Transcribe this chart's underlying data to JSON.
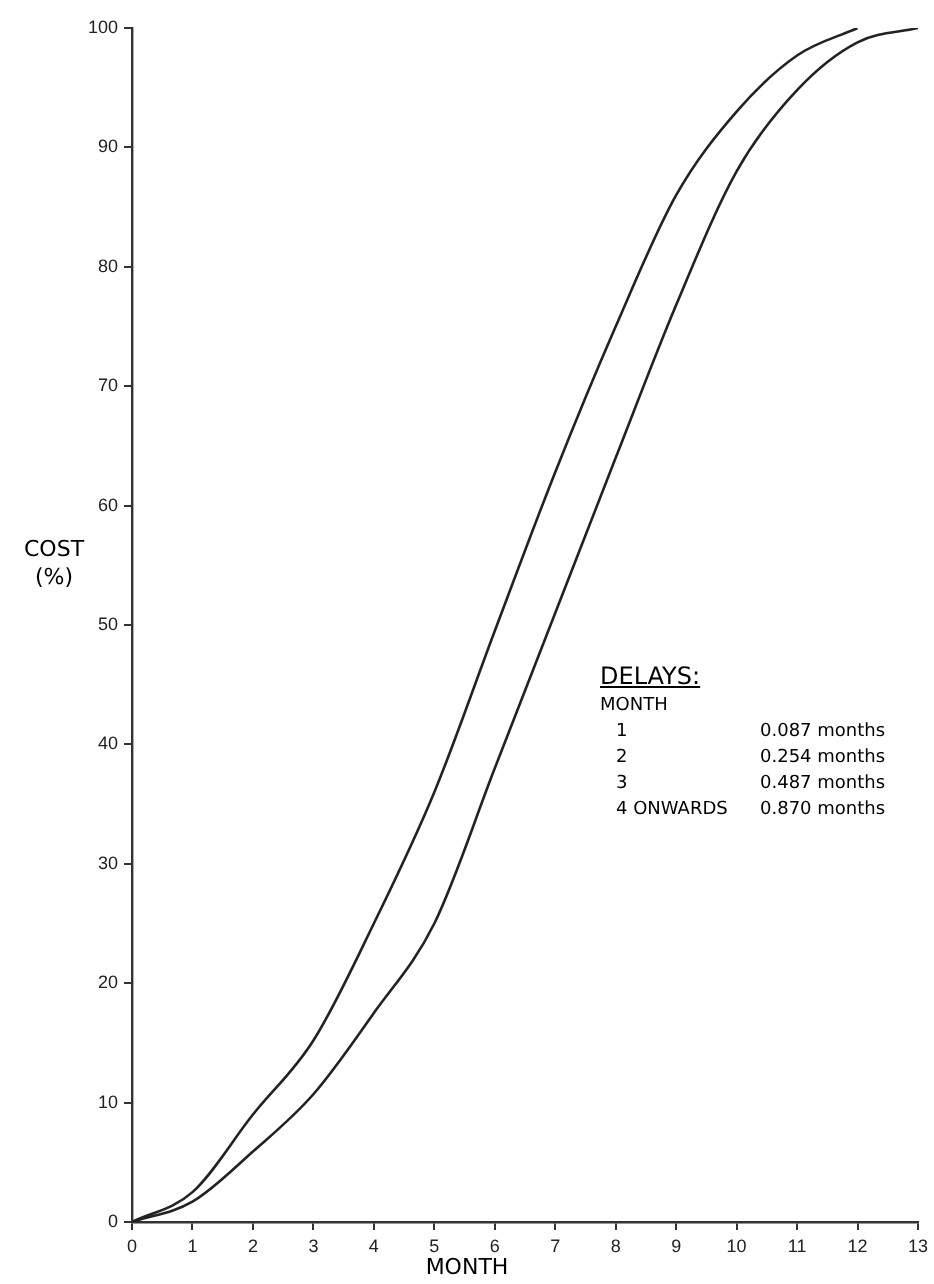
{
  "chart_data": {
    "type": "line",
    "xlabel": "MONTH",
    "ylabel": "COST (%)",
    "xlim": [
      0,
      13
    ],
    "xticks": [
      0,
      1,
      2,
      3,
      4,
      5,
      6,
      7,
      8,
      9,
      10,
      11,
      12,
      13
    ],
    "ylim": [
      0,
      100
    ],
    "yticks": [
      0,
      10,
      20,
      30,
      40,
      50,
      60,
      70,
      80,
      90,
      100
    ],
    "grid": false,
    "legend": false,
    "marker": "none",
    "line_style": "solid",
    "series": [
      {
        "color": "#222222",
        "x": [
          0,
          1,
          2,
          3,
          4,
          5,
          6,
          7,
          8,
          9,
          10,
          11,
          12
        ],
        "values": [
          0,
          2.5,
          9,
          15.2,
          25,
          36,
          49.5,
          62.8,
          75,
          86,
          93,
          97.7,
          100
        ]
      },
      {
        "color": "#222222",
        "x": [
          0,
          1,
          2,
          3,
          4,
          5,
          6,
          7,
          8,
          9,
          10,
          11,
          12,
          13
        ],
        "values": [
          0,
          1.7,
          5.9,
          10.7,
          17.5,
          25,
          38,
          51,
          64,
          76.8,
          88,
          94.8,
          98.8,
          100
        ]
      }
    ],
    "annotations": [
      "DELAYS:",
      "MONTH",
      "1",
      "0.087 months",
      "2",
      "0.254 months",
      "3",
      "0.487 months",
      "4 ONWARDS",
      "0.870 months"
    ]
  }
}
